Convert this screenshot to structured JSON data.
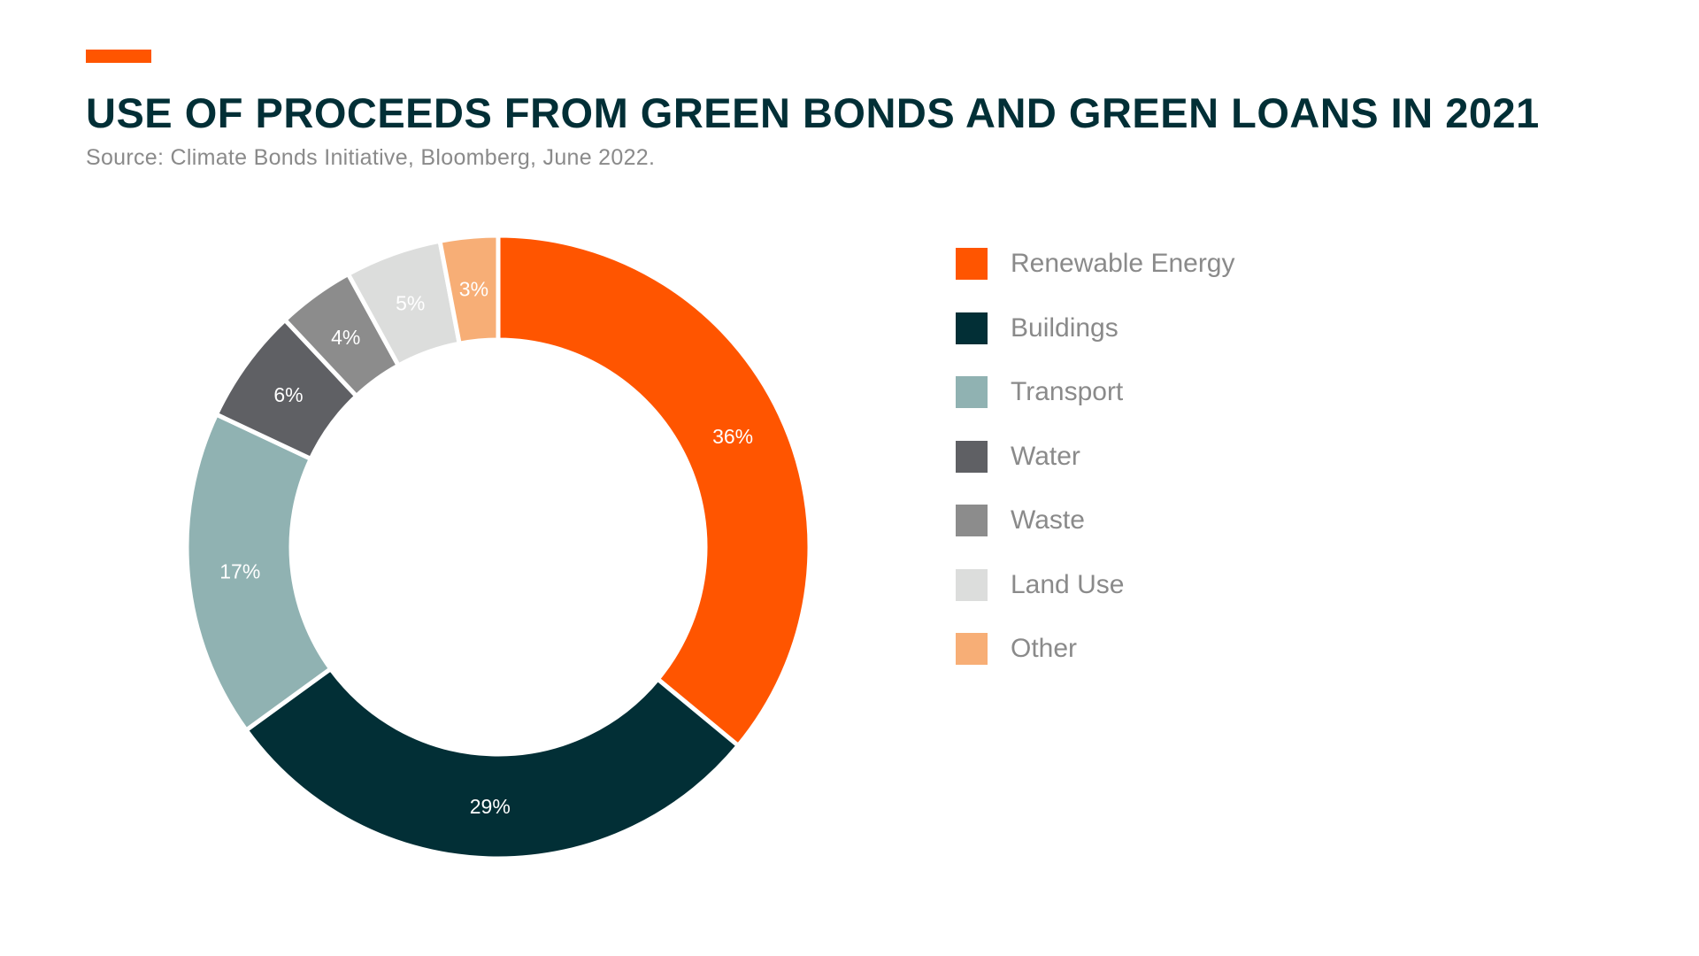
{
  "header": {
    "title": "USE OF PROCEEDS FROM GREEN BONDS AND GREEN LOANS IN 2021",
    "source": "Source: Climate Bonds Initiative, Bloomberg, June 2022.",
    "accent_color": "#ff5500"
  },
  "chart_data": {
    "type": "pie",
    "variant": "donut",
    "title": "USE OF PROCEEDS FROM GREEN BONDS AND GREEN LOANS IN 2021",
    "subtitle": "Source: Climate Bonds Initiative, Bloomberg, June 2022.",
    "legend_position": "right",
    "categories": [
      "Renewable Energy",
      "Buildings",
      "Transport",
      "Water",
      "Waste",
      "Land Use",
      "Other"
    ],
    "values": [
      36,
      29,
      17,
      6,
      4,
      5,
      3
    ],
    "labels": [
      "36%",
      "29%",
      "17%",
      "6%",
      "4%",
      "5%",
      "3%"
    ],
    "colors": [
      "#ff5500",
      "#022f36",
      "#90b2b2",
      "#5f6064",
      "#8c8c8c",
      "#dcdddc",
      "#f7ae76"
    ],
    "unit": "%"
  }
}
